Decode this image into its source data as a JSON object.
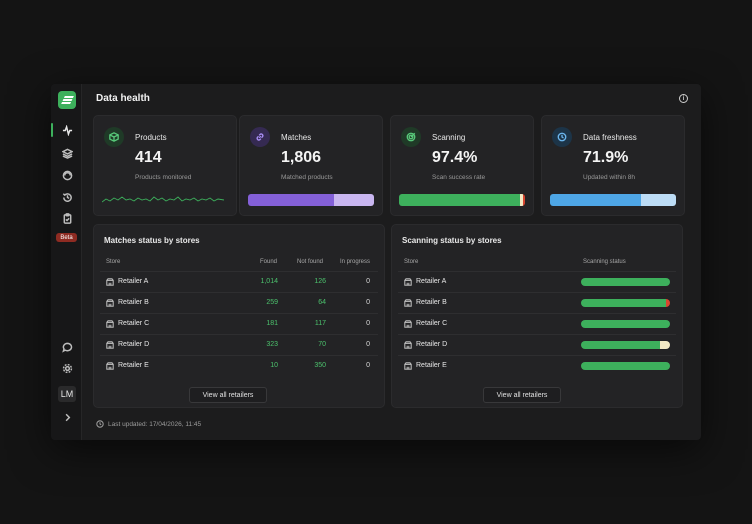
{
  "page": {
    "title": "Data health"
  },
  "sidebar": {
    "beta_label": "Beta",
    "avatar_initials": "LM"
  },
  "cards": [
    {
      "title": "Products",
      "value": "414",
      "subtitle": "Products monitored",
      "icon": "cube-icon",
      "accent": "#3db05c"
    },
    {
      "title": "Matches",
      "value": "1,806",
      "subtitle": "Matched products",
      "icon": "link-icon",
      "accent": "#8e6cf0",
      "bar_fraction": 0.68
    },
    {
      "title": "Scanning",
      "value": "97.4%",
      "subtitle": "Scan success rate",
      "icon": "target-icon",
      "accent": "#3db05c",
      "bar_fraction": 0.974
    },
    {
      "title": "Data freshness",
      "value": "71.9%",
      "subtitle": "Updated within 8h",
      "icon": "clock-icon",
      "accent": "#4ea6e6",
      "bar_fraction": 0.719
    }
  ],
  "matches_panel": {
    "title": "Matches status by stores",
    "columns": [
      "Store",
      "Found",
      "Not found",
      "In progress"
    ],
    "rows": [
      {
        "store": "Retailer A",
        "found": "1,014",
        "not_found": "126",
        "in_progress": "0"
      },
      {
        "store": "Retailer B",
        "found": "259",
        "not_found": "64",
        "in_progress": "0"
      },
      {
        "store": "Retailer C",
        "found": "181",
        "not_found": "117",
        "in_progress": "0"
      },
      {
        "store": "Retailer D",
        "found": "323",
        "not_found": "70",
        "in_progress": "0"
      },
      {
        "store": "Retailer E",
        "found": "10",
        "not_found": "350",
        "in_progress": "0"
      }
    ],
    "view_all_label": "View all retailers"
  },
  "scanning_panel": {
    "title": "Scanning status by stores",
    "columns": [
      "Store",
      "Scanning status"
    ],
    "rows": [
      {
        "store": "Retailer A",
        "success_fraction": 1.0,
        "tail_color": "#3db05c"
      },
      {
        "store": "Retailer B",
        "success_fraction": 0.95,
        "tail_color": "#d8452f"
      },
      {
        "store": "Retailer C",
        "success_fraction": 1.0,
        "tail_color": "#3db05c"
      },
      {
        "store": "Retailer D",
        "success_fraction": 0.89,
        "tail_color": "#f3e9c4"
      },
      {
        "store": "Retailer E",
        "success_fraction": 1.0,
        "tail_color": "#3db05c"
      }
    ],
    "view_all_label": "View all retailers"
  },
  "footer": {
    "last_updated": "Last updated: 17/04/2026, 11:45"
  }
}
